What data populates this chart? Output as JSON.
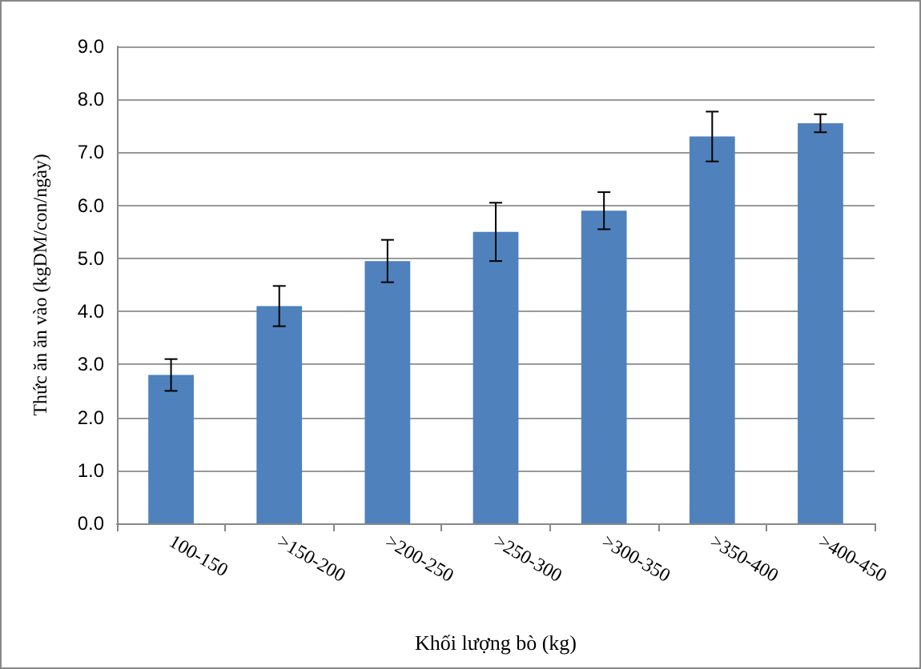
{
  "chart_data": {
    "type": "bar",
    "xlabel": "Khối lượng bò (kg)",
    "ylabel": "Thức ăn ăn vào (kgDM/con/ngày)",
    "categories": [
      "100-150",
      ">150-200",
      ">200-250",
      ">250-300",
      ">300-350",
      ">350-400",
      ">400-450"
    ],
    "values": [
      2.8,
      4.1,
      4.95,
      5.5,
      5.9,
      7.3,
      7.55
    ],
    "errors": [
      0.3,
      0.38,
      0.4,
      0.55,
      0.35,
      0.47,
      0.17
    ],
    "color": "#4f81bd",
    "ylim": [
      0,
      9
    ],
    "yticks": [
      {
        "value": 0,
        "label": "0.0"
      },
      {
        "value": 1,
        "label": "1.0"
      },
      {
        "value": 2,
        "label": "2.0"
      },
      {
        "value": 3,
        "label": "3.0"
      },
      {
        "value": 4,
        "label": "4.0"
      },
      {
        "value": 5,
        "label": "5.0"
      },
      {
        "value": 6,
        "label": "6.0"
      },
      {
        "value": 7,
        "label": "7.0"
      },
      {
        "value": 8,
        "label": "8.0"
      },
      {
        "value": 9,
        "label": "9.0"
      }
    ],
    "grid": "y"
  }
}
